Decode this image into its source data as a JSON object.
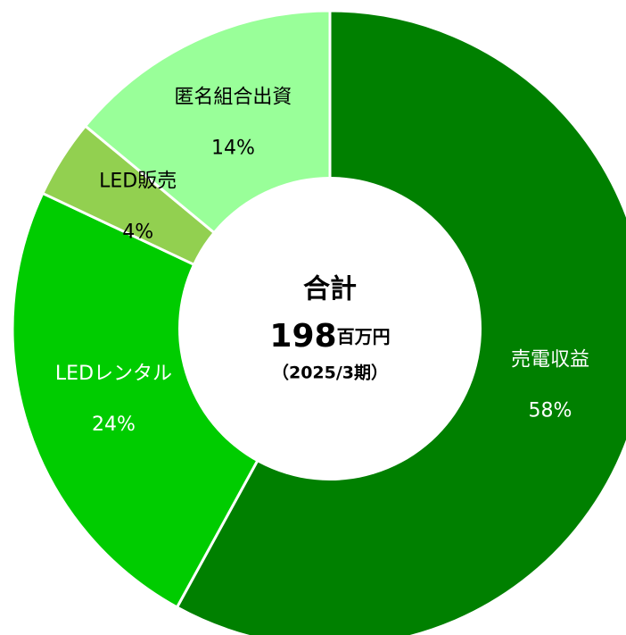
{
  "chart_data": {
    "type": "donut",
    "categories": [
      "売電収益",
      "LEDレンタル",
      "LED販売",
      "匿名組合出資"
    ],
    "values": [
      58,
      24,
      4,
      14
    ],
    "value_labels": [
      "58%",
      "24%",
      "4%",
      "14%"
    ],
    "colors": [
      "#008000",
      "#00cc00",
      "#92d050",
      "#99ff99"
    ],
    "label_colors": [
      "#ffffff",
      "#ffffff",
      "#000000",
      "#000000"
    ],
    "center_title": "合計",
    "center_value": 198,
    "center_unit": "百万円",
    "center_note": "（2025/3期）"
  }
}
